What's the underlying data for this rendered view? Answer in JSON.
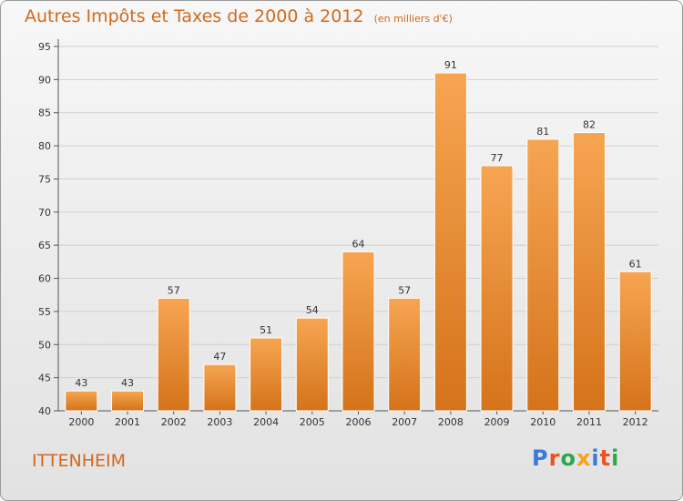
{
  "header": {
    "title": "Autres Impôts et Taxes de 2000 à 2012",
    "subtitle": "(en milliers d'€)"
  },
  "footer": {
    "commune": "ITTENHEIM",
    "brand": "Proxiti"
  },
  "colors": {
    "bar_top": "#f7a552",
    "bar_bottom": "#d4731a",
    "accent": "#d2691e",
    "brand_letters": [
      "#3a7bd5",
      "#e8531f",
      "#2ba84a",
      "#f5a31a",
      "#3a7bd5",
      "#e8531f",
      "#2ba84a"
    ]
  },
  "chart_data": {
    "type": "bar",
    "categories": [
      "2000",
      "2001",
      "2002",
      "2003",
      "2004",
      "2005",
      "2006",
      "2007",
      "2008",
      "2009",
      "2010",
      "2011",
      "2012"
    ],
    "values": [
      43,
      43,
      57,
      47,
      51,
      54,
      64,
      57,
      91,
      77,
      81,
      82,
      61
    ],
    "ylim": [
      40,
      95
    ],
    "yticks": [
      40,
      45,
      50,
      55,
      60,
      65,
      70,
      75,
      80,
      85,
      90,
      95
    ],
    "grid": true
  }
}
